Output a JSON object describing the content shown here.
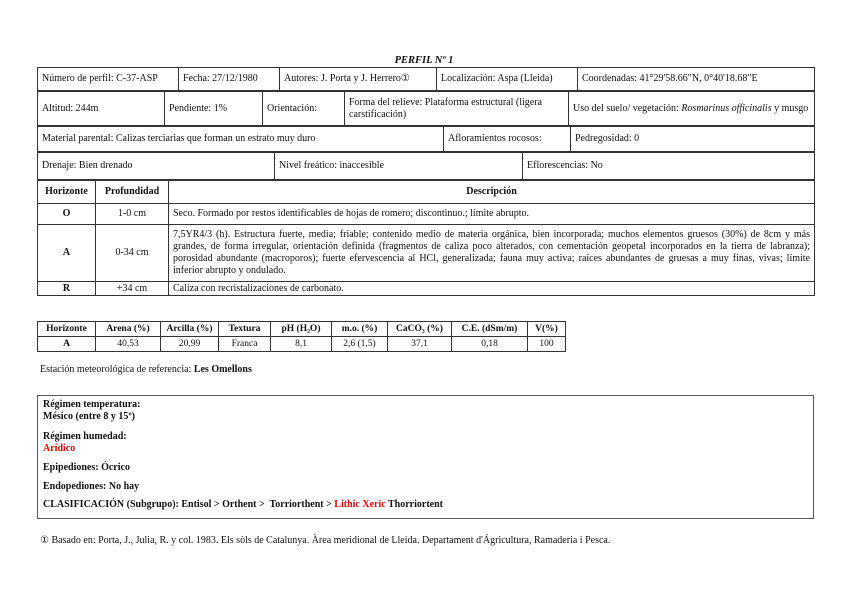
{
  "title": "PERFIL Nº 1",
  "row1": [
    "Número de perfil: C-37-ASP",
    "Fecha: 27/12/1980",
    "Autores: J. Porta y J. Herrero①",
    "Localización: Aspa (Lleida)",
    "Coordenadas: 41°29'58.66\"N, 0°40'18.68\"E"
  ],
  "row2": {
    "altitud": "Altitud: 244m",
    "pendiente": "Pendiente: 1%",
    "orientacion": "Orientación:",
    "forma": "Forma del relieve: Plataforma estructural (ligera carstificación)",
    "uso_label": "Uso del suelo/ vegetación: ",
    "uso_species": "Rosmarinus officinalis",
    "uso_rest": " y musgo"
  },
  "row3": [
    "Material parental: Calizas terciarias que forman un estrato muy duro",
    "Afloramientos rocosos:",
    "Pedregosidad: 0"
  ],
  "row4": [
    "Drenaje: Bien drenado",
    "Nivel freático: inaccesible",
    "Eflorescencias: No"
  ],
  "horizons": {
    "headers": [
      "Horizonte",
      "Profundidad",
      "Descripción"
    ],
    "rows": [
      {
        "h": "O",
        "p": "1-0 cm",
        "d": "Seco. Formado por restos identificables de hojas de romero; discontinuo.; límite abrupto."
      },
      {
        "h": "A",
        "p": "0-34 cm",
        "d": "7,5YR4/3 (h). Estructura fuerte, media; friable; contenido medio de materia orgánica, bien incorporada; muchos elementos gruesos (30%) de 8cm y más grandes, de forma irregular, orientación definida (fragmentos de caliza poco alterados, con cementación geopetal incorporados en la tierra de labranza); porosidad abundante (macroporos); fuerte efervescencia al HCl, generalizada; fauna muy activa; raíces abundantes de gruesas a muy finas, vivas; límite inferior abrupto y ondulado."
      },
      {
        "h": "R",
        "p": "+34 cm",
        "d": "Caliza con recristalizaciones de carbonato."
      }
    ]
  },
  "analysis": {
    "headers": [
      "Horizonte",
      "Arena (%)",
      "Arcilla (%)",
      "Textura",
      "pH (H₂O)",
      "m.o. (%)",
      "CaCO₃ (%)",
      "C.E. (dSm/m)",
      "V(%)"
    ],
    "row": [
      "A",
      "40,53",
      "20,99",
      "Franca",
      "8,1",
      "2,6 (1,5)",
      "37,1",
      "0,18",
      "100"
    ]
  },
  "station": {
    "label": "Estación meteorológica de referencia: ",
    "value": "Les Omellons"
  },
  "classification": {
    "temp_label": "Régimen temperatura:",
    "temp_value": "Mésico (entre 8 y 15º)",
    "hum_label": "Régimen humedad:",
    "hum_value": "Arídico",
    "epi": "Epipediones: Ócrico",
    "endo": "Endopediones: No hay",
    "clas_prefix": "CLASIFICACIÓN (Subgrupo): Entisol > Orthent >  Torriorthent > ",
    "clas_red": "Lithic Xeric",
    "clas_suffix": " Thorriortent"
  },
  "footnote": "① Basado en: Porta, J., Julia, R. y col. 1983. Els sòls de Catalunya. Àrea meridional de Lleida. Departament d'Ágricultura, Ramaderia  i Pesca.",
  "colors": {
    "highlight": "#ee0000"
  }
}
